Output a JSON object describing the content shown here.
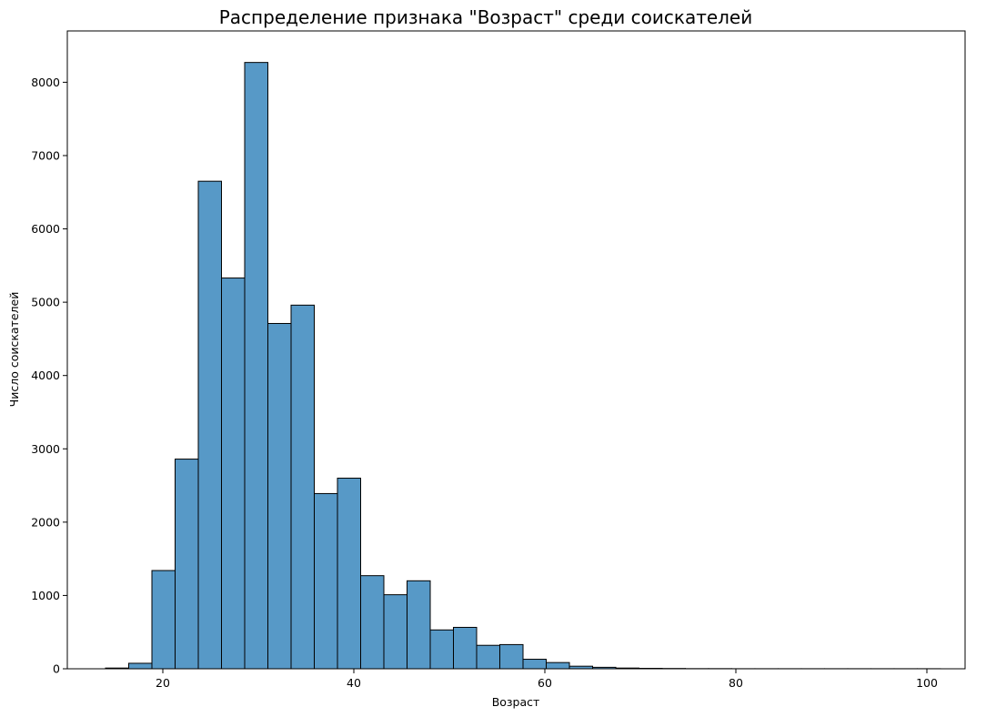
{
  "chart_data": {
    "type": "bar",
    "title": "Распределение признака \"Возраст\" среди соискателей",
    "xlabel": "Возраст",
    "ylabel": "Число соискателей",
    "xlim": [
      10,
      104
    ],
    "ylim": [
      0,
      8700
    ],
    "xticks": [
      20,
      40,
      60,
      80,
      100
    ],
    "yticks": [
      0,
      1000,
      2000,
      3000,
      4000,
      5000,
      6000,
      7000,
      8000
    ],
    "bin_start": 14,
    "bin_width": 2.4286,
    "values": [
      10,
      75,
      1340,
      2860,
      6650,
      5330,
      8270,
      4710,
      4960,
      2390,
      2600,
      1270,
      1010,
      1200,
      530,
      565,
      320,
      330,
      130,
      85,
      35,
      20,
      10,
      6,
      4,
      2,
      2,
      1,
      1,
      1,
      1,
      1,
      1,
      1,
      1,
      1
    ],
    "grid": false,
    "colors": {
      "bar_fill": "#5799c7",
      "bar_edge": "#000000"
    }
  }
}
